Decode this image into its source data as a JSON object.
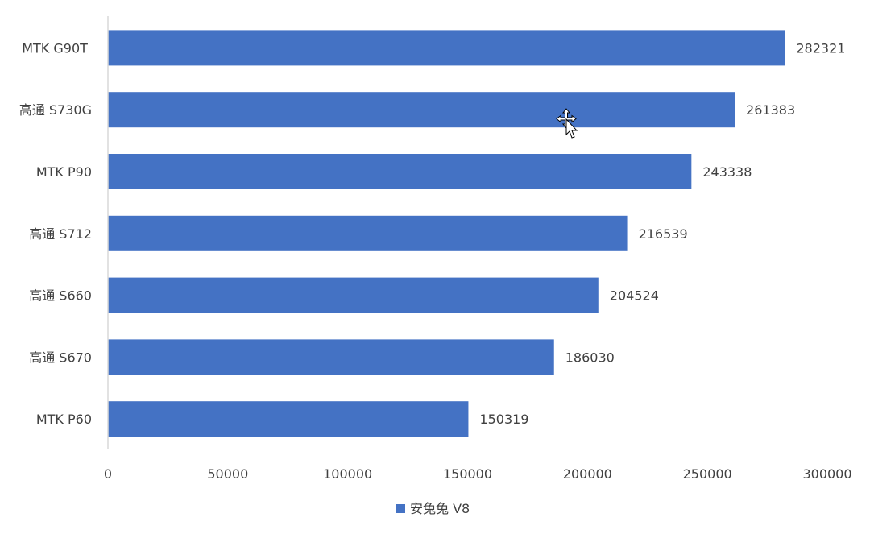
{
  "chart_data": {
    "type": "bar",
    "orientation": "horizontal",
    "categories": [
      "MTK G90T ",
      "高通 S730G",
      "MTK P90",
      "高通 S712",
      "高通 S660",
      "高通 S670",
      "MTK P60"
    ],
    "series": [
      {
        "name": "安兔兔 V8",
        "values": [
          282321,
          261383,
          243338,
          216539,
          204524,
          186030,
          150319
        ],
        "color": "#4472C4"
      }
    ],
    "data_labels": [
      "282321",
      "261383",
      "243338",
      "216539",
      "204524",
      "186030",
      "150319"
    ],
    "xlim": [
      0,
      300000
    ],
    "x_ticks": [
      0,
      50000,
      100000,
      150000,
      200000,
      250000,
      300000
    ],
    "x_tick_labels": [
      "0",
      "50000",
      "100000",
      "150000",
      "200000",
      "250000",
      "300000"
    ],
    "grid": false,
    "legend": {
      "placement": "bottom",
      "label": "安兔兔 V8"
    },
    "title": "",
    "xlabel": "",
    "ylabel": ""
  }
}
